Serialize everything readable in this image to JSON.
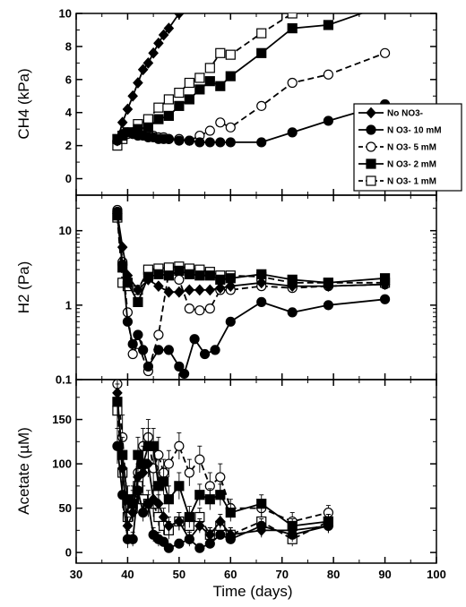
{
  "chart_data": {
    "type": "line",
    "x_axis": {
      "label": "Time (days)",
      "range": [
        30,
        100
      ],
      "ticks": [
        "30",
        "40",
        "50",
        "60",
        "70",
        "80",
        "90",
        "100"
      ]
    },
    "legend": {
      "placement": "top-right of top panel",
      "entries": [
        {
          "label": "No  NO3-",
          "series": "no_no3"
        },
        {
          "label": "N O3-  10  mM",
          "series": "n10"
        },
        {
          "label": "N O3-  5 mM",
          "series": "n5"
        },
        {
          "label": "N O3-  2 mM",
          "series": "n2"
        },
        {
          "label": "N O3-  1 mM",
          "series": "n1"
        }
      ]
    },
    "styles": {
      "no_no3": {
        "marker": "diamond",
        "fill": "#000000",
        "dash": "solid"
      },
      "n10": {
        "marker": "circle",
        "fill": "#000000",
        "dash": "solid"
      },
      "n5": {
        "marker": "circle",
        "fill": "#ffffff",
        "dash": "dashed"
      },
      "n2": {
        "marker": "square",
        "fill": "#000000",
        "dash": "solid"
      },
      "n1": {
        "marker": "square",
        "fill": "#ffffff",
        "dash": "dashed"
      }
    },
    "panels": [
      {
        "id": "ch4",
        "ylabel": "CH4 (kPa)",
        "scale": "linear",
        "ylim": [
          -1,
          10
        ],
        "yticks": [
          "0",
          "2",
          "4",
          "6",
          "8",
          "10"
        ],
        "series": {
          "no_no3": {
            "x": [
              38,
              39,
              40,
              41,
              42,
              43,
              44,
              45,
              46,
              47,
              48,
              50,
              51
            ],
            "y": [
              2.3,
              3.4,
              4.2,
              5.0,
              5.8,
              6.6,
              7.0,
              7.6,
              8.2,
              8.7,
              9.1,
              10.0,
              10.5
            ]
          },
          "n10": {
            "x": [
              38,
              39,
              40,
              41,
              42,
              43,
              44,
              45,
              46,
              47,
              48,
              50,
              52,
              54,
              56,
              58,
              60,
              66,
              72,
              79,
              90
            ],
            "y": [
              2.3,
              2.7,
              2.8,
              2.7,
              2.6,
              2.6,
              2.5,
              2.5,
              2.4,
              2.4,
              2.4,
              2.3,
              2.3,
              2.2,
              2.2,
              2.2,
              2.2,
              2.2,
              2.8,
              3.5,
              4.5
            ]
          },
          "n5": {
            "x": [
              38,
              39,
              40,
              41,
              42,
              43,
              44,
              45,
              46,
              47,
              48,
              50,
              52,
              54,
              56,
              58,
              60,
              66,
              72,
              79,
              90
            ],
            "y": [
              2.2,
              2.5,
              2.7,
              2.8,
              2.9,
              2.8,
              2.6,
              2.6,
              2.5,
              2.5,
              2.4,
              2.4,
              2.3,
              2.6,
              2.9,
              3.4,
              3.1,
              4.4,
              5.8,
              6.3,
              7.6
            ]
          },
          "n2": {
            "x": [
              38,
              39,
              40,
              42,
              44,
              46,
              48,
              50,
              52,
              54,
              56,
              58,
              60,
              66,
              72,
              79,
              90
            ],
            "y": [
              2.4,
              2.6,
              2.8,
              3.0,
              3.1,
              3.6,
              3.8,
              4.4,
              4.8,
              5.4,
              5.9,
              5.6,
              6.2,
              7.6,
              9.1,
              9.3,
              10.5
            ]
          },
          "n1": {
            "x": [
              38,
              39,
              40,
              42,
              44,
              46,
              48,
              50,
              52,
              54,
              56,
              58,
              60,
              66,
              72,
              79
            ],
            "y": [
              2.0,
              2.4,
              2.8,
              3.3,
              3.6,
              4.3,
              4.8,
              5.2,
              5.8,
              6.1,
              6.7,
              7.6,
              7.5,
              8.8,
              10.0,
              10.6
            ]
          }
        }
      },
      {
        "id": "h2",
        "ylabel": "H2 (Pa)",
        "scale": "log",
        "ylim": [
          0.1,
          30
        ],
        "yticks": [
          "0.1",
          "1",
          "10"
        ],
        "series": {
          "no_no3": {
            "x": [
              38,
              39,
              40,
              42,
              44,
              46,
              48,
              50,
              52,
              54,
              56,
              58,
              60,
              66,
              72,
              79,
              90
            ],
            "y": [
              17,
              6,
              2.5,
              1.6,
              2.2,
              1.8,
              1.5,
              1.5,
              1.6,
              1.6,
              1.6,
              1.7,
              1.8,
              2.0,
              1.8,
              1.8,
              1.9
            ]
          },
          "n10": {
            "x": [
              38,
              39,
              40,
              41,
              42,
              43,
              44,
              46,
              48,
              50,
              51,
              53,
              55,
              57,
              60,
              66,
              72,
              79,
              90
            ],
            "y": [
              18,
              3.5,
              0.6,
              0.3,
              0.4,
              0.25,
              0.15,
              0.25,
              0.25,
              0.15,
              0.12,
              0.35,
              0.22,
              0.25,
              0.6,
              1.1,
              0.8,
              1.0,
              1.2
            ]
          },
          "n5": {
            "x": [
              38,
              39,
              40,
              41,
              42,
              44,
              46,
              48,
              50,
              52,
              54,
              56,
              58,
              60,
              66,
              72,
              79,
              90
            ],
            "y": [
              19,
              3.8,
              0.8,
              0.22,
              0.3,
              0.13,
              0.4,
              2.8,
              2.2,
              0.9,
              0.85,
              0.9,
              1.6,
              1.6,
              1.8,
              1.7,
              1.8,
              1.9
            ]
          },
          "n2": {
            "x": [
              38,
              39,
              40,
              42,
              44,
              46,
              48,
              50,
              52,
              54,
              56,
              58,
              60,
              66,
              72,
              79,
              90
            ],
            "y": [
              16,
              3.2,
              2.0,
              1.1,
              2.4,
              2.6,
              2.5,
              2.9,
              2.6,
              2.5,
              2.5,
              2.2,
              2.3,
              2.6,
              2.2,
              2.0,
              2.3
            ]
          },
          "n1": {
            "x": [
              38,
              39,
              40,
              42,
              44,
              46,
              48,
              50,
              52,
              54,
              56,
              58,
              60,
              66,
              72,
              79,
              90
            ],
            "y": [
              15,
              2.0,
              1.8,
              1.6,
              3.0,
              3.1,
              3.2,
              3.3,
              3.1,
              3.0,
              2.8,
              2.5,
              2.5,
              2.4,
              2.0,
              2.0,
              2.0
            ]
          }
        }
      },
      {
        "id": "acetate",
        "ylabel": "Acetate (µM)",
        "scale": "linear",
        "ylim": [
          -12,
          195
        ],
        "yticks": [
          "0",
          "50",
          "100",
          "150"
        ],
        "series": {
          "no_no3": {
            "x": [
              38,
              39,
              40,
              41,
              42,
              43,
              44,
              45,
              46,
              47,
              48,
              50,
              52,
              54,
              56,
              58,
              60,
              66,
              72,
              79
            ],
            "y": [
              180,
              95,
              30,
              45,
              85,
              90,
              100,
              60,
              55,
              40,
              30,
              35,
              15,
              30,
              20,
              35,
              20,
              25,
              25,
              30
            ],
            "err": [
              15,
              20,
              10,
              10,
              15,
              15,
              15,
              15,
              10,
              10,
              10,
              10,
              8,
              8,
              8,
              8,
              8,
              8,
              8,
              8
            ]
          },
          "n10": {
            "x": [
              38,
              39,
              40,
              41,
              42,
              43,
              44,
              45,
              46,
              47,
              48,
              50,
              52,
              54,
              56,
              58,
              60,
              66,
              72,
              79
            ],
            "y": [
              120,
              65,
              15,
              15,
              70,
              45,
              55,
              20,
              15,
              12,
              5,
              10,
              15,
              5,
              10,
              20,
              15,
              30,
              20,
              30
            ],
            "err": [
              20,
              15,
              10,
              8,
              15,
              10,
              10,
              8,
              8,
              5,
              5,
              5,
              5,
              5,
              5,
              5,
              5,
              8,
              8,
              8
            ]
          },
          "n5": {
            "x": [
              38,
              39,
              40,
              41,
              42,
              43,
              44,
              45,
              46,
              47,
              48,
              50,
              52,
              54,
              56,
              58,
              60,
              66,
              72,
              79
            ],
            "y": [
              190,
              130,
              50,
              60,
              90,
              120,
              130,
              95,
              110,
              90,
              100,
              120,
              90,
              105,
              75,
              85,
              50,
              50,
              35,
              45
            ],
            "err": [
              20,
              25,
              15,
              15,
              20,
              20,
              20,
              20,
              20,
              15,
              15,
              15,
              15,
              15,
              15,
              15,
              10,
              10,
              10,
              8
            ]
          },
          "n2": {
            "x": [
              38,
              39,
              40,
              41,
              42,
              43,
              44,
              45,
              46,
              47,
              48,
              50,
              52,
              54,
              56,
              58,
              60,
              66,
              72,
              79
            ],
            "y": [
              170,
              110,
              60,
              55,
              110,
              100,
              120,
              120,
              75,
              80,
              60,
              75,
              40,
              65,
              60,
              65,
              45,
              55,
              30,
              35
            ],
            "err": [
              20,
              20,
              15,
              15,
              20,
              20,
              20,
              20,
              15,
              15,
              15,
              15,
              12,
              12,
              12,
              12,
              10,
              10,
              8,
              8
            ]
          },
          "n1": {
            "x": [
              38,
              39,
              40,
              41,
              42,
              43,
              44,
              45,
              46,
              47,
              48,
              50,
              52,
              54,
              56,
              58,
              60,
              66,
              72,
              79
            ],
            "y": [
              160,
              90,
              40,
              50,
              75,
              60,
              55,
              55,
              40,
              30,
              25,
              35,
              30,
              40,
              20,
              30,
              20,
              35,
              15,
              35
            ],
            "err": [
              20,
              20,
              15,
              15,
              15,
              15,
              15,
              15,
              10,
              10,
              10,
              10,
              10,
              10,
              8,
              8,
              8,
              10,
              8,
              8
            ]
          }
        }
      }
    ]
  }
}
